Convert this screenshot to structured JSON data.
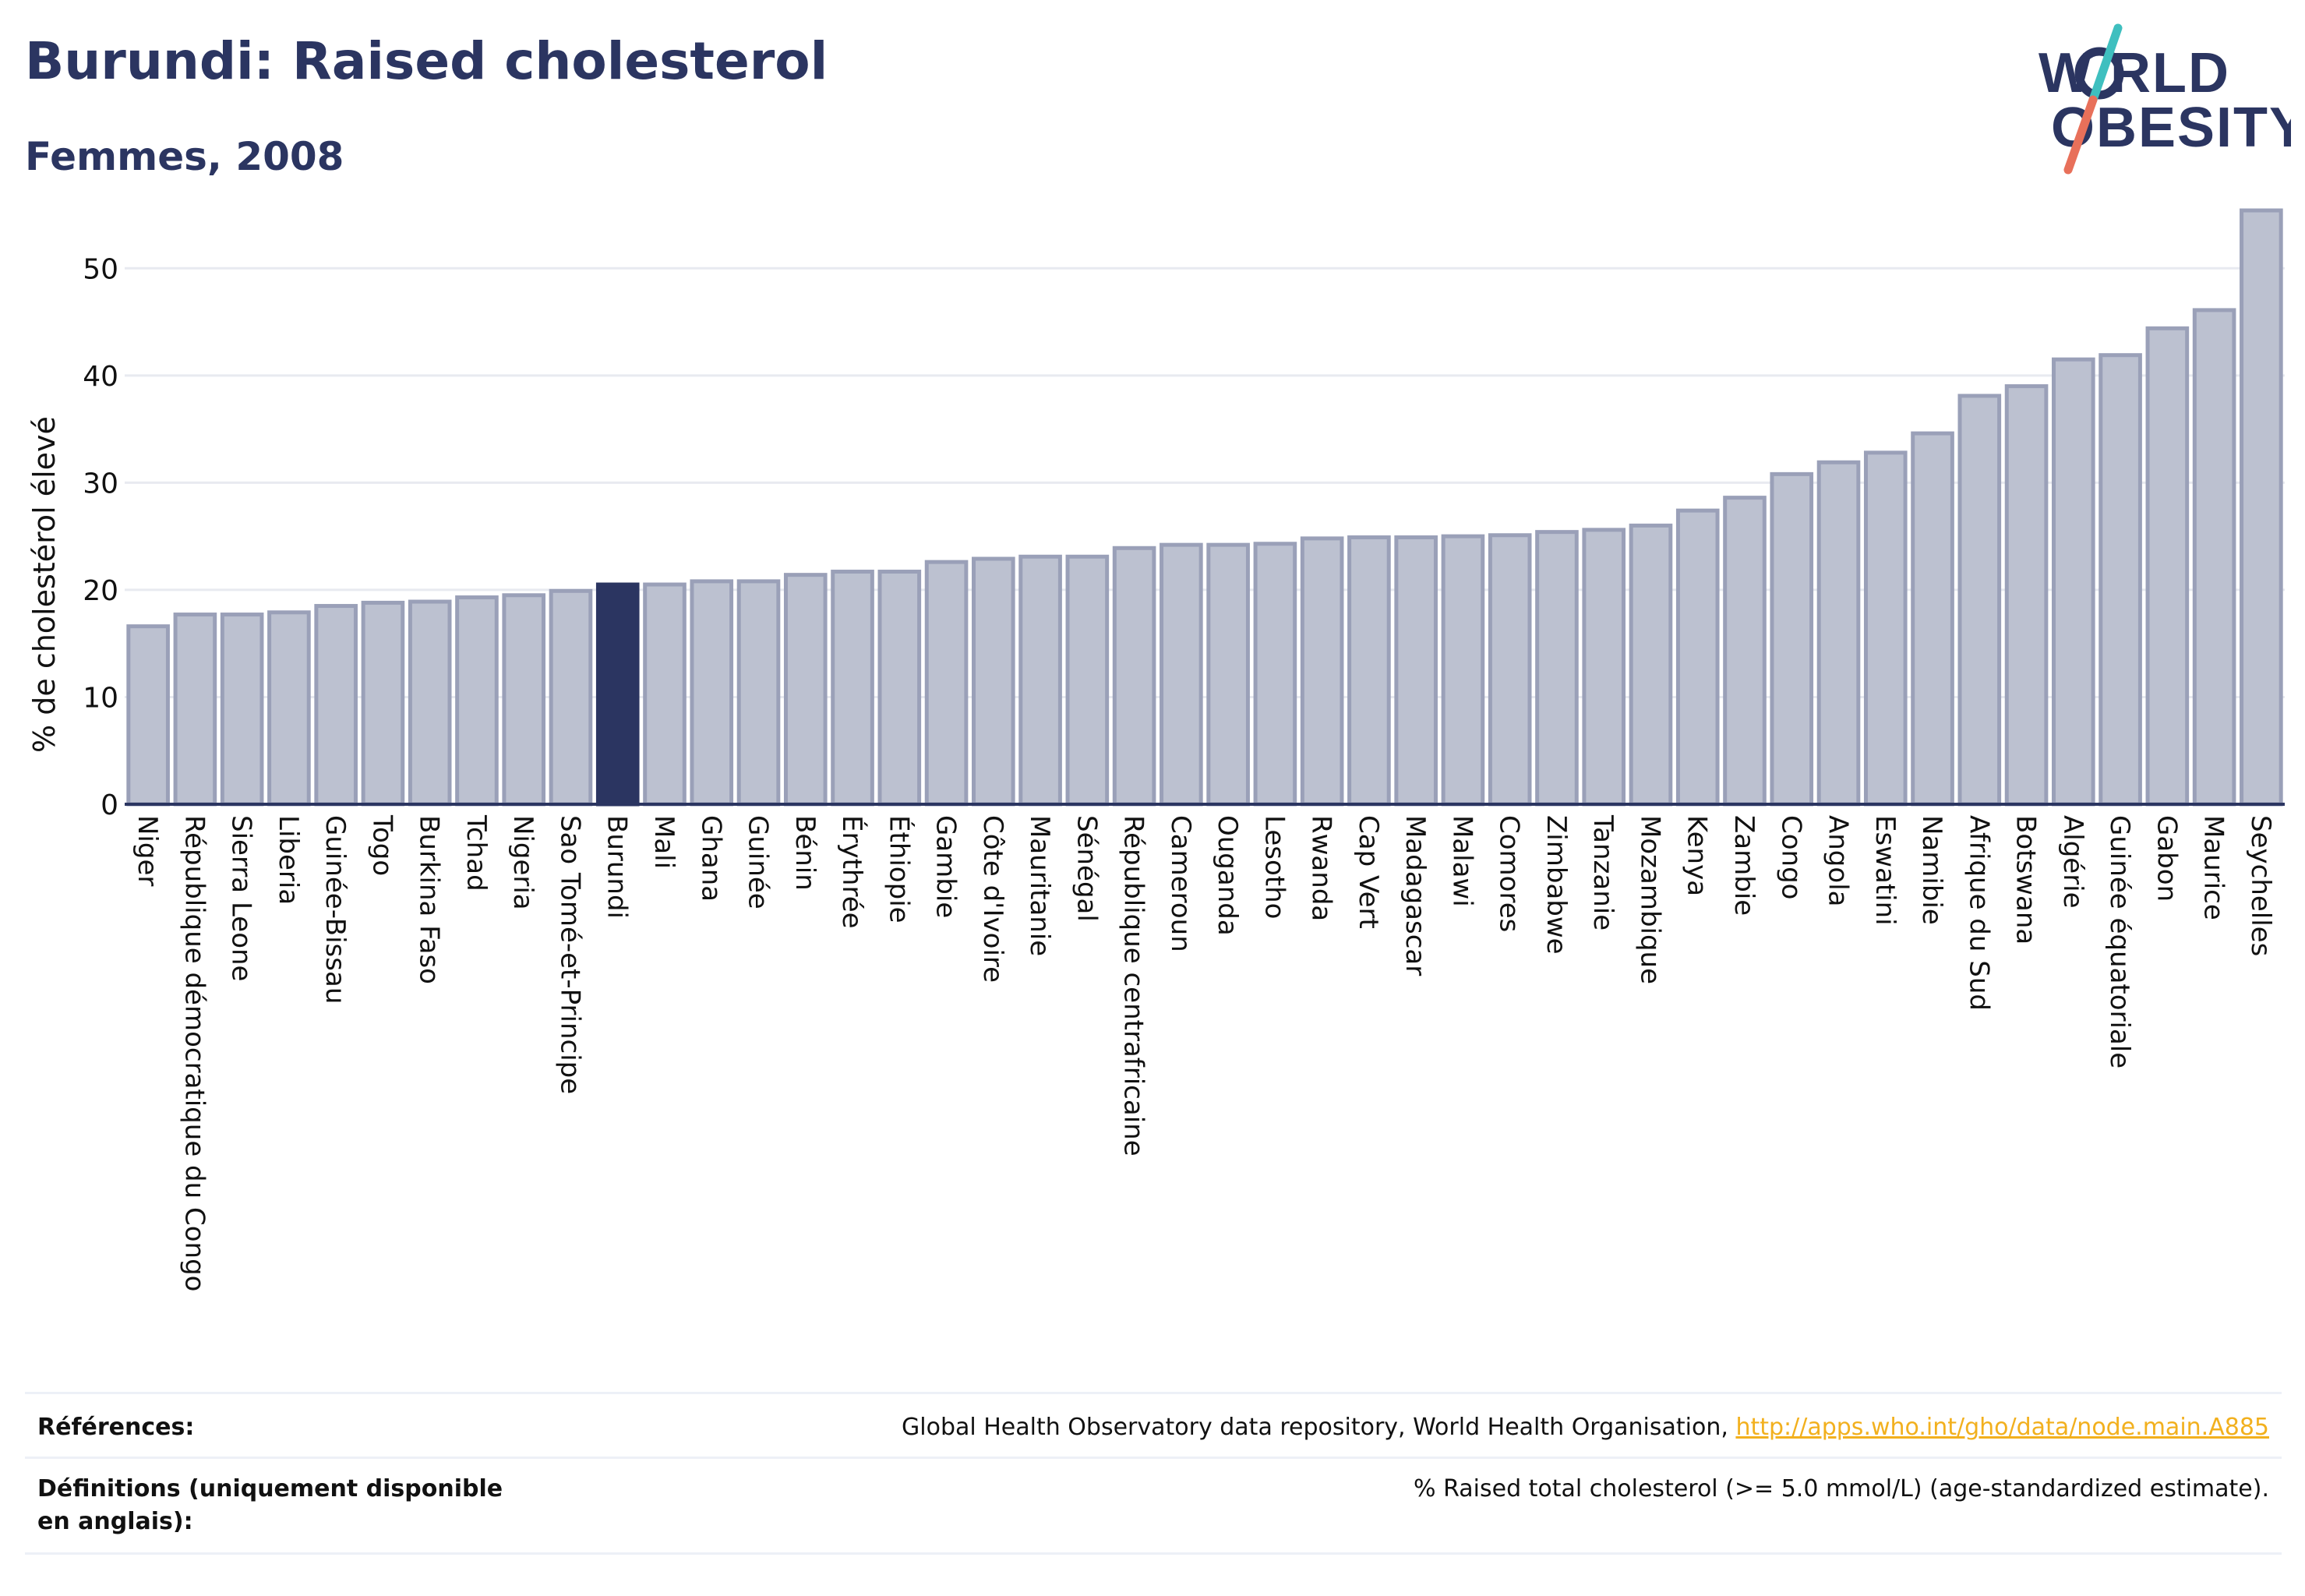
{
  "header": {
    "title": "Burundi: Raised cholesterol",
    "subtitle": "Femmes, 2008"
  },
  "logo": {
    "line1": "W   RLD",
    "line2": "OBESITY",
    "colors": {
      "text": "#2b3561",
      "slash_top": "#3fbfbf",
      "slash_bottom": "#e8705a"
    }
  },
  "chart_data": {
    "type": "bar",
    "ylabel": "% de cholestérol élevé",
    "xlabel": "",
    "ylim": [
      0,
      57
    ],
    "yticks": [
      0,
      10,
      20,
      30,
      40,
      50
    ],
    "grid": true,
    "highlight": "Burundi",
    "colors": {
      "bar": "#bcc1d0",
      "bar_edge": "#9aa0b8",
      "highlight": "#2b3561",
      "grid": "#e8eaf0",
      "axis": "#2b3561"
    },
    "categories": [
      "Niger",
      "République démocratique du Congo",
      "Sierra Leone",
      "Liberia",
      "Guinée-Bissau",
      "Togo",
      "Burkina Faso",
      "Tchad",
      "Nigeria",
      "Sao Tomé-et-Principe",
      "Burundi",
      "Mali",
      "Ghana",
      "Guinée",
      "Bénin",
      "Érythrée",
      "Éthiopie",
      "Gambie",
      "Côte d'Ivoire",
      "Mauritanie",
      "Sénégal",
      "République centrafricaine",
      "Cameroun",
      "Ouganda",
      "Lesotho",
      "Rwanda",
      "Cap Vert",
      "Madagascar",
      "Malawi",
      "Comores",
      "Zimbabwe",
      "Tanzanie",
      "Mozambique",
      "Kenya",
      "Zambie",
      "Congo",
      "Angola",
      "Eswatini",
      "Namibie",
      "Afrique du Sud",
      "Botswana",
      "Algérie",
      "Guinée équatoriale",
      "Gabon",
      "Maurice",
      "Seychelles"
    ],
    "values": [
      16.6,
      17.7,
      17.7,
      17.9,
      18.5,
      18.8,
      18.9,
      19.3,
      19.5,
      19.9,
      20.5,
      20.5,
      20.8,
      20.8,
      21.4,
      21.7,
      21.7,
      22.6,
      22.9,
      23.1,
      23.1,
      23.9,
      24.2,
      24.2,
      24.3,
      24.8,
      24.9,
      24.9,
      25.0,
      25.1,
      25.4,
      25.6,
      26.0,
      27.4,
      28.6,
      30.8,
      31.9,
      32.8,
      34.6,
      38.1,
      39.0,
      41.5,
      41.9,
      44.4,
      46.1,
      55.4
    ]
  },
  "references": {
    "rows": [
      {
        "label": "Références:",
        "text": "Global Health Observatory data repository, World Health Organisation, ",
        "link": "http://apps.who.int/gho/data/node.main.A885"
      },
      {
        "label": "Définitions (uniquement disponible en anglais):",
        "text": "% Raised total cholesterol (>= 5.0 mmol/L) (age-standardized estimate).",
        "link": ""
      }
    ]
  }
}
